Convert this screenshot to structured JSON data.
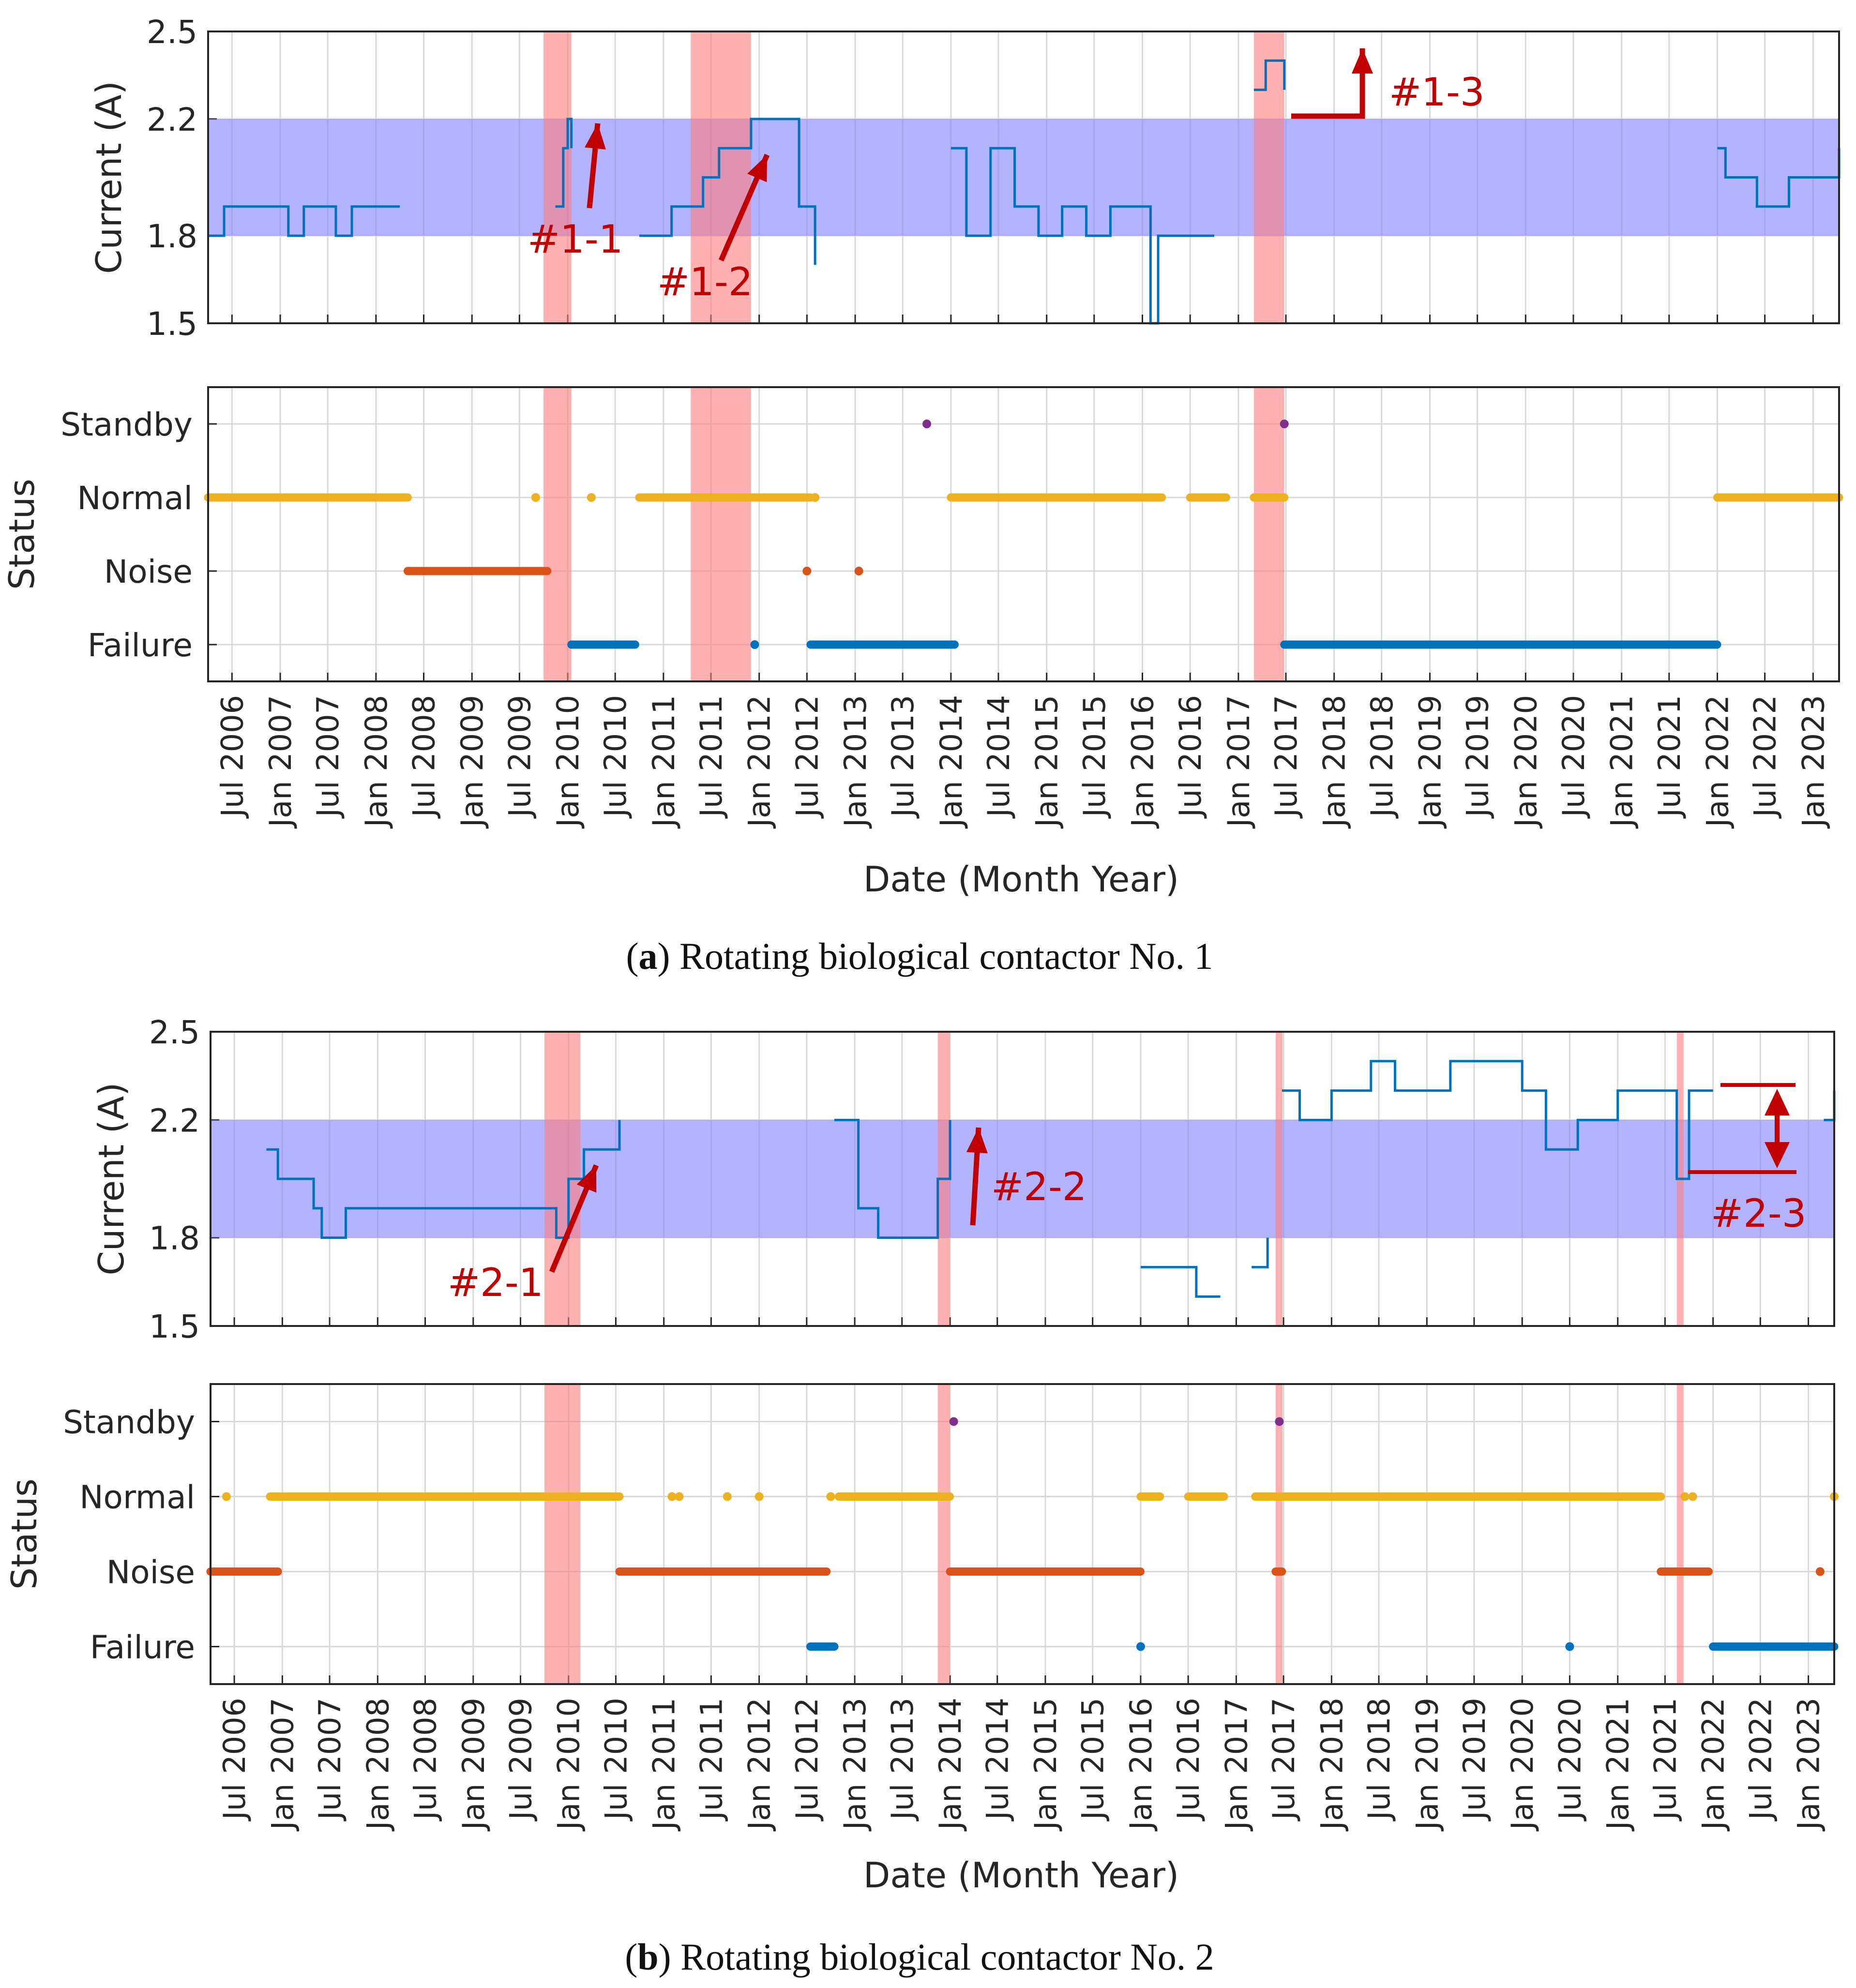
{
  "colors": {
    "band": "#8080ff",
    "highlight": "#ff7b7b",
    "current_line": "#0072bd",
    "normal": "#edb120",
    "noise": "#d95319",
    "failure": "#0072bd",
    "standby": "#7e2f8e",
    "annotation": "#c00000",
    "grid": "#d9d9d9"
  },
  "x_axis": {
    "label": "Date (Month Year)",
    "range": [
      "2006-04-01",
      "2023-04-10"
    ],
    "ticks": [
      "Jul 2006",
      "Jan 2007",
      "Jul 2007",
      "Jan 2008",
      "Jul 2008",
      "Jan 2009",
      "Jul 2009",
      "Jan 2010",
      "Jul 2010",
      "Jan 2011",
      "Jul 2011",
      "Jan 2012",
      "Jul 2012",
      "Jan 2013",
      "Jul 2013",
      "Jan 2014",
      "Jul 2014",
      "Jan 2015",
      "Jul 2015",
      "Jan 2016",
      "Jul 2016",
      "Jan 2017",
      "Jul 2017",
      "Jan 2018",
      "Jul 2018",
      "Jan 2019",
      "Jul 2019",
      "Jan 2020",
      "Jul 2020",
      "Jan 2021",
      "Jul 2021",
      "Jan 2022",
      "Jul 2022",
      "Jan 2023"
    ]
  },
  "captions": {
    "a": {
      "bold": "a",
      "text": " Rotating biological contactor No. 1"
    },
    "b": {
      "bold": "b",
      "text": " Rotating biological contactor No. 2"
    }
  },
  "chart_data": [
    {
      "id": "a-current",
      "type": "line",
      "panel": "Rotating biological contactor No. 1",
      "ylabel": "Current (A)",
      "ylim": [
        1.5,
        2.5
      ],
      "yticks": [
        1.5,
        1.8,
        2.2,
        2.5
      ],
      "grid": true,
      "normal_band": [
        1.8,
        2.2
      ],
      "highlight_periods": [
        [
          "2009-10-01",
          "2010-01-15"
        ],
        [
          "2011-04-15",
          "2011-12-01"
        ],
        [
          "2017-03-01",
          "2017-06-25"
        ]
      ],
      "series": [
        {
          "x": [
            "2006-04-01",
            "2006-06-01",
            "2006-08-01",
            "2006-10-01",
            "2006-12-01",
            "2007-02-01",
            "2007-04-01",
            "2007-06-01",
            "2007-08-01",
            "2007-10-01",
            "2007-12-01",
            "2008-02-01",
            "2008-04-01"
          ],
          "y": [
            1.8,
            1.9,
            1.9,
            1.9,
            1.9,
            1.8,
            1.9,
            1.9,
            1.8,
            1.9,
            1.9,
            1.9,
            1.9
          ]
        },
        {
          "x": [
            "2009-11-15",
            "2009-12-15",
            "2010-01-01",
            "2010-01-15"
          ],
          "y": [
            1.9,
            2.1,
            2.2,
            2.1
          ]
        },
        {
          "x": [
            "2010-10-01",
            "2010-12-01",
            "2011-02-01",
            "2011-04-01",
            "2011-06-01",
            "2011-08-01",
            "2011-10-01",
            "2011-12-01",
            "2012-02-01",
            "2012-04-01",
            "2012-06-01",
            "2012-08-01"
          ],
          "y": [
            1.8,
            1.8,
            1.9,
            1.9,
            2.0,
            2.1,
            2.1,
            2.2,
            2.2,
            2.2,
            1.9,
            1.7
          ]
        },
        {
          "x": [
            "2014-01-01",
            "2014-03-01",
            "2014-06-01",
            "2014-09-01",
            "2014-12-01",
            "2015-03-01",
            "2015-06-01",
            "2015-09-01",
            "2015-12-01",
            "2016-02-01",
            "2016-03-01",
            "2016-05-01",
            "2016-10-01"
          ],
          "y": [
            2.1,
            1.8,
            2.1,
            1.9,
            1.8,
            1.9,
            1.8,
            1.9,
            1.9,
            1.5,
            1.8,
            1.8,
            1.8
          ]
        },
        {
          "x": [
            "2017-03-01",
            "2017-04-15",
            "2017-06-25"
          ],
          "y": [
            2.3,
            2.4,
            2.3
          ]
        },
        {
          "x": [
            "2022-01-01",
            "2022-02-01",
            "2022-06-01",
            "2022-10-01",
            "2023-01-01",
            "2023-04-10"
          ],
          "y": [
            2.1,
            2.0,
            1.9,
            2.0,
            2.0,
            2.1
          ]
        }
      ],
      "annotations": [
        "#1-1",
        "#1-2",
        "#1-3"
      ]
    },
    {
      "id": "a-status",
      "type": "scatter",
      "panel": "Rotating biological contactor No. 1",
      "ylabel": "Status",
      "categories": [
        "Failure",
        "Noise",
        "Normal",
        "Standby"
      ],
      "grid": true,
      "highlight_periods": [
        [
          "2009-10-01",
          "2010-01-15"
        ],
        [
          "2011-04-15",
          "2011-12-01"
        ],
        [
          "2017-03-01",
          "2017-06-25"
        ]
      ],
      "segments": [
        {
          "status": "Normal",
          "from": "2006-04-01",
          "to": "2008-05-01"
        },
        {
          "status": "Noise",
          "from": "2008-05-01",
          "to": "2009-10-15"
        },
        {
          "status": "Failure",
          "from": "2010-01-15",
          "to": "2010-09-15"
        },
        {
          "status": "Normal",
          "from": "2010-10-01",
          "to": "2012-07-15"
        },
        {
          "status": "Failure",
          "from": "2012-07-15",
          "to": "2014-01-15"
        },
        {
          "status": "Normal",
          "from": "2014-01-01",
          "to": "2016-03-15"
        },
        {
          "status": "Normal",
          "from": "2016-07-01",
          "to": "2016-11-15"
        },
        {
          "status": "Normal",
          "from": "2017-03-01",
          "to": "2017-06-25"
        },
        {
          "status": "Failure",
          "from": "2017-06-25",
          "to": "2021-12-31"
        },
        {
          "status": "Normal",
          "from": "2022-01-01",
          "to": "2023-04-10"
        }
      ],
      "points": [
        {
          "status": "Normal",
          "x": "2009-09-01"
        },
        {
          "status": "Normal",
          "x": "2010-04-01"
        },
        {
          "status": "Failure",
          "x": "2011-12-15"
        },
        {
          "status": "Normal",
          "x": "2012-08-01"
        },
        {
          "status": "Noise",
          "x": "2012-07-01"
        },
        {
          "status": "Noise",
          "x": "2013-01-15"
        },
        {
          "status": "Standby",
          "x": "2013-10-01"
        },
        {
          "status": "Standby",
          "x": "2017-06-25"
        }
      ]
    },
    {
      "id": "b-current",
      "type": "line",
      "panel": "Rotating biological contactor No. 2",
      "ylabel": "Current (A)",
      "ylim": [
        1.5,
        2.5
      ],
      "yticks": [
        1.5,
        1.8,
        2.2,
        2.5
      ],
      "grid": true,
      "normal_band": [
        1.8,
        2.2
      ],
      "highlight_periods": [
        [
          "2009-10-01",
          "2010-02-15"
        ],
        [
          "2013-11-15",
          "2013-12-31"
        ],
        [
          "2017-06-01",
          "2017-06-25"
        ],
        [
          "2021-08-15",
          "2021-09-01"
        ]
      ],
      "series": [
        {
          "x": [
            "2006-11-01",
            "2006-12-15",
            "2007-03-01",
            "2007-05-01",
            "2007-06-01",
            "2007-09-01",
            "2008-03-01",
            "2008-09-01",
            "2009-03-01",
            "2009-09-01",
            "2009-11-15",
            "2010-01-01",
            "2010-03-01",
            "2010-06-15",
            "2010-07-15"
          ],
          "y": [
            2.1,
            2.0,
            2.0,
            1.9,
            1.8,
            1.9,
            1.9,
            1.9,
            1.9,
            1.9,
            1.8,
            2.0,
            2.1,
            2.1,
            2.2
          ]
        },
        {
          "x": [
            "2012-10-15",
            "2012-12-15",
            "2013-01-15",
            "2013-04-01",
            "2013-08-01",
            "2013-11-15",
            "2014-01-01"
          ],
          "y": [
            2.2,
            2.2,
            1.9,
            1.8,
            1.8,
            2.0,
            2.2
          ]
        },
        {
          "x": [
            "2016-01-01",
            "2016-03-01",
            "2016-08-01",
            "2016-11-01"
          ],
          "y": [
            1.7,
            1.7,
            1.6,
            1.6
          ]
        },
        {
          "x": [
            "2017-03-01",
            "2017-05-01"
          ],
          "y": [
            1.7,
            1.8
          ]
        },
        {
          "x": [
            "2017-06-25",
            "2017-09-01",
            "2018-01-01",
            "2018-03-01",
            "2018-06-01",
            "2018-09-01",
            "2019-01-01",
            "2019-04-01",
            "2019-08-01",
            "2020-01-01",
            "2020-04-01",
            "2020-08-01",
            "2021-01-01",
            "2021-06-01",
            "2021-08-15",
            "2021-10-01",
            "2022-01-01"
          ],
          "y": [
            2.3,
            2.2,
            2.3,
            2.3,
            2.4,
            2.3,
            2.3,
            2.4,
            2.4,
            2.3,
            2.1,
            2.2,
            2.3,
            2.3,
            2.0,
            2.3,
            2.3
          ]
        },
        {
          "x": [
            "2023-03-01",
            "2023-04-10"
          ],
          "y": [
            2.2,
            2.3
          ]
        }
      ],
      "annotations": [
        "#2-1",
        "#2-2",
        "#2-3"
      ]
    },
    {
      "id": "b-status",
      "type": "scatter",
      "panel": "Rotating biological contactor No. 2",
      "ylabel": "Status",
      "categories": [
        "Failure",
        "Noise",
        "Normal",
        "Standby"
      ],
      "grid": true,
      "highlight_periods": [
        [
          "2009-10-01",
          "2010-02-15"
        ],
        [
          "2013-11-15",
          "2013-12-31"
        ],
        [
          "2017-06-01",
          "2017-06-25"
        ],
        [
          "2021-08-15",
          "2021-09-01"
        ]
      ],
      "segments": [
        {
          "status": "Noise",
          "from": "2006-04-01",
          "to": "2006-12-15"
        },
        {
          "status": "Normal",
          "from": "2006-11-15",
          "to": "2010-07-15"
        },
        {
          "status": "Noise",
          "from": "2010-07-15",
          "to": "2012-09-15"
        },
        {
          "status": "Failure",
          "from": "2012-07-15",
          "to": "2012-10-15"
        },
        {
          "status": "Normal",
          "from": "2012-11-01",
          "to": "2013-12-31"
        },
        {
          "status": "Noise",
          "from": "2014-01-01",
          "to": "2015-12-31"
        },
        {
          "status": "Normal",
          "from": "2016-01-01",
          "to": "2016-03-15"
        },
        {
          "status": "Normal",
          "from": "2016-07-01",
          "to": "2016-11-15"
        },
        {
          "status": "Normal",
          "from": "2017-03-15",
          "to": "2021-06-15"
        },
        {
          "status": "Noise",
          "from": "2017-06-01",
          "to": "2017-06-25"
        },
        {
          "status": "Noise",
          "from": "2021-06-15",
          "to": "2021-12-15"
        },
        {
          "status": "Failure",
          "from": "2022-01-01",
          "to": "2023-04-10"
        }
      ],
      "points": [
        {
          "status": "Normal",
          "x": "2006-06-01"
        },
        {
          "status": "Normal",
          "x": "2011-02-01"
        },
        {
          "status": "Normal",
          "x": "2011-03-01"
        },
        {
          "status": "Normal",
          "x": "2011-09-01"
        },
        {
          "status": "Normal",
          "x": "2012-01-01"
        },
        {
          "status": "Normal",
          "x": "2012-10-01"
        },
        {
          "status": "Normal",
          "x": "2021-09-15"
        },
        {
          "status": "Normal",
          "x": "2021-10-15"
        },
        {
          "status": "Normal",
          "x": "2023-04-10"
        },
        {
          "status": "Failure",
          "x": "2016-01-01"
        },
        {
          "status": "Failure",
          "x": "2020-07-01"
        },
        {
          "status": "Noise",
          "x": "2023-02-15"
        },
        {
          "status": "Standby",
          "x": "2014-01-15"
        },
        {
          "status": "Standby",
          "x": "2017-06-15"
        }
      ]
    }
  ]
}
